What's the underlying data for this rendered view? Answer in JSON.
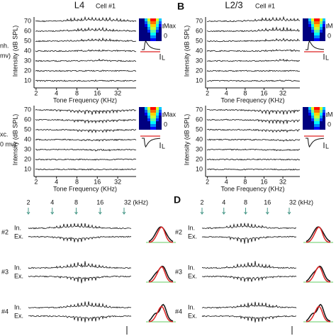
{
  "panel_a": {
    "title": "L4",
    "cell": "Cell #1",
    "plots": [
      {
        "side_label": [
          "nh.",
          "mv)"
        ],
        "colorbar_labels": [
          "Max",
          "0"
        ],
        "scale_label": "L"
      },
      {
        "side_label": [
          "xc.",
          "0 mv)"
        ],
        "colorbar_labels": [
          "Max",
          "0"
        ],
        "scale_label": "L"
      }
    ]
  },
  "panel_b": {
    "letter": "B",
    "title": "L2/3",
    "cell": "Cell #1",
    "plots": [
      {
        "colorbar_labels": [
          "M",
          "0"
        ],
        "scale_label": "L"
      },
      {
        "colorbar_labels": [
          "M",
          "0"
        ],
        "scale_label": "L"
      }
    ]
  },
  "axes": {
    "ylabel": "Intensity (dB SPL)",
    "yticks": [
      "70",
      "60",
      "50",
      "40",
      "30",
      "20",
      "10"
    ],
    "xlabel": "Tone Frequency (KHz)",
    "xticks": [
      "2",
      "4",
      "8",
      "16",
      "32"
    ]
  },
  "panel_c": {
    "freq_labels": [
      "2",
      "4",
      "8",
      "16",
      "32 (kHz)"
    ],
    "rows": [
      {
        "id": "#2",
        "in": "In.",
        "ex": "Ex."
      },
      {
        "id": "#3",
        "in": "In.",
        "ex": "Ex."
      },
      {
        "id": "#4",
        "in": "In.",
        "ex": "Ex."
      }
    ]
  },
  "panel_d": {
    "letter": "D",
    "freq_labels": [
      "2",
      "4",
      "8",
      "16",
      "32 (kHz)"
    ],
    "rows": [
      {
        "id": "#2",
        "in": "In.",
        "ex": "Ex."
      },
      {
        "id": "#3",
        "in": "In.",
        "ex": "Ex."
      },
      {
        "id": "#4",
        "in": "In.",
        "ex": "Ex."
      }
    ]
  }
}
